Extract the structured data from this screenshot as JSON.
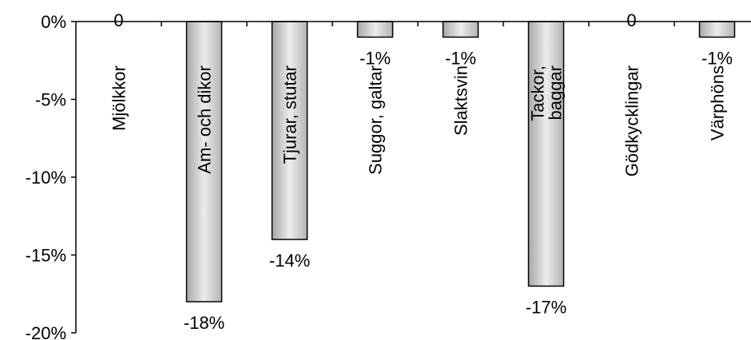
{
  "chart_data": {
    "type": "bar",
    "categories": [
      "Mjölkkor",
      "Am- och dikor",
      "Tjurar, stutar",
      "Suggor, galtar",
      "Slaktsvin",
      "Tackor, baggar",
      "Gödkycklingar",
      "Värphöns"
    ],
    "values": [
      0,
      -18,
      -14,
      -1,
      -1,
      -17,
      0,
      -1
    ],
    "data_labels": [
      "0",
      "-18%",
      "-14%",
      "-1%",
      "-1%",
      "-17%",
      "0",
      "-1%"
    ],
    "y_ticks": [
      0,
      -5,
      -10,
      -15,
      -20
    ],
    "y_tick_labels": [
      "0%",
      "-5%",
      "-10%",
      "-15%",
      "-20%"
    ],
    "ylim": [
      -20,
      0
    ],
    "title": "",
    "xlabel": "",
    "ylabel": "",
    "grid": false,
    "legend": "none",
    "bar_fill": "#d0d0d0"
  }
}
